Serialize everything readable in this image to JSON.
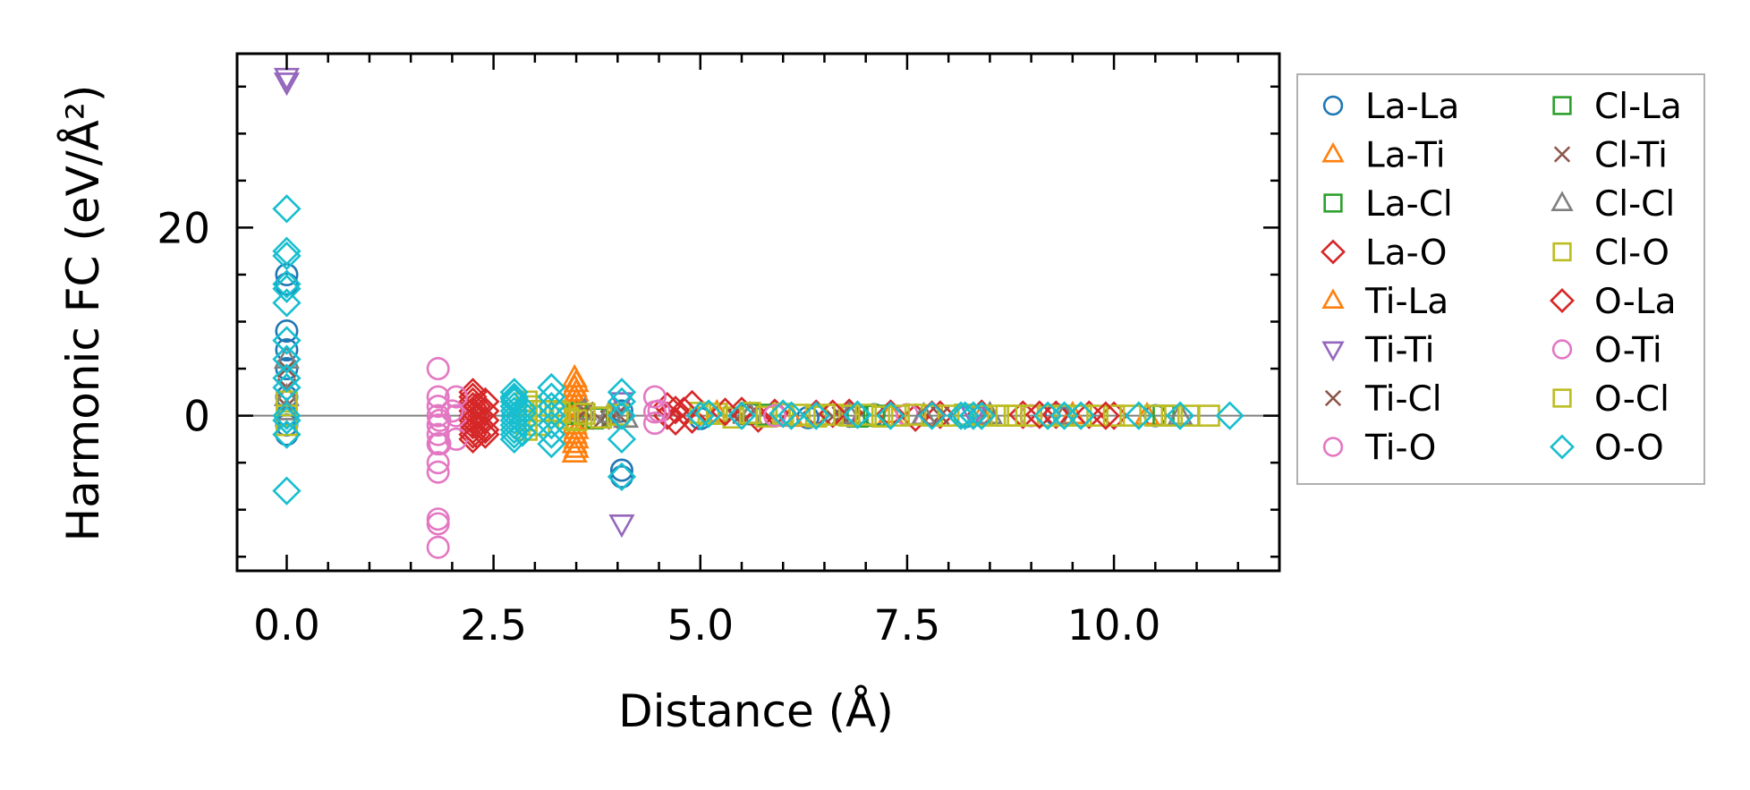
{
  "chart_data": {
    "type": "scatter",
    "title": "",
    "xlabel": "Distance (Å)",
    "ylabel": "Harmonic FC (eV/Å²)",
    "xlim": [
      -0.6,
      12.0
    ],
    "ylim": [
      -16.5,
      38.5
    ],
    "xticks": [
      0.0,
      2.5,
      5.0,
      7.5,
      10.0
    ],
    "xtick_labels": [
      "0.0",
      "2.5",
      "5.0",
      "7.5",
      "10.0"
    ],
    "yticks": [
      0,
      20
    ],
    "ytick_labels": [
      "0",
      "20"
    ],
    "reference_line_y": 0,
    "grid": false,
    "legend": {
      "position": "outside-right",
      "columns": 2
    },
    "series": [
      {
        "name": "La-La",
        "marker": "circle",
        "color": "#1f77b4",
        "x": [
          0,
          0,
          0,
          0,
          0,
          0,
          0,
          0,
          0,
          4.05,
          4.05,
          4.05,
          5.0,
          5.6,
          6.3,
          7.1,
          8.2,
          9.3,
          10.5
        ],
        "y": [
          15,
          14,
          9,
          7,
          5,
          0,
          -1,
          -2,
          2,
          -5.8,
          -6.5,
          0.5,
          -0.3,
          0.2,
          -0.2,
          0.1,
          -0.1,
          0.1,
          0
        ]
      },
      {
        "name": "La-Ti",
        "marker": "triangle-up",
        "color": "#ff7f0e",
        "x": [
          3.48,
          3.48,
          3.48,
          3.48,
          3.48,
          3.48,
          3.48,
          3.48,
          3.48,
          5.2,
          6.1,
          7.3,
          8.4,
          9.5,
          10.4
        ],
        "y": [
          4,
          3,
          2,
          1,
          0,
          -1,
          -2,
          -3,
          -4,
          0.3,
          -0.2,
          0.2,
          -0.1,
          0.1,
          0
        ]
      },
      {
        "name": "La-Cl",
        "marker": "square",
        "color": "#2ca02c",
        "x": [
          3.5,
          3.7,
          5.6,
          6.9,
          8.2,
          9.4,
          10.6
        ],
        "y": [
          0.3,
          -0.3,
          0.2,
          -0.1,
          0.1,
          0,
          0
        ]
      },
      {
        "name": "La-O",
        "marker": "diamond",
        "color": "#d62728",
        "x": [
          2.25,
          2.25,
          2.25,
          2.25,
          2.25,
          2.25,
          2.25,
          2.25,
          2.25,
          2.25,
          2.25,
          2.4,
          2.4,
          2.4,
          2.4,
          2.4,
          4.6,
          4.6,
          4.7,
          4.7,
          4.9,
          4.9,
          5.5,
          5.7,
          5.9,
          6.4,
          6.8,
          7.3,
          7.6,
          7.9,
          8.4,
          8.9,
          9.3,
          9.7,
          10.0
        ],
        "y": [
          2.5,
          2,
          1.5,
          1,
          0.5,
          0,
          -0.5,
          -1,
          -1.5,
          -2,
          -2.5,
          1.5,
          0.5,
          -0.5,
          -1.5,
          -2,
          1,
          0,
          0.6,
          -0.6,
          1.2,
          -0.4,
          0.5,
          -0.3,
          0.3,
          0.2,
          0.3,
          0.2,
          -0.2,
          0.1,
          0.2,
          0.1,
          0.1,
          0.1,
          0
        ]
      },
      {
        "name": "Ti-La",
        "marker": "triangle-up",
        "color": "#ff7f0e",
        "x": [
          3.5,
          3.5,
          3.5,
          3.5,
          3.5,
          3.5,
          3.5,
          3.5
        ],
        "y": [
          3.5,
          2.5,
          1.5,
          0.5,
          -0.5,
          -1.5,
          -2.5,
          -3.5
        ]
      },
      {
        "name": "Ti-Ti",
        "marker": "triangle-down",
        "color": "#9467bd",
        "x": [
          0,
          0,
          4.05,
          4.05,
          6.8,
          8.3
        ],
        "y": [
          36,
          35.5,
          -11.5,
          1.5,
          0.1,
          0
        ]
      },
      {
        "name": "Ti-Cl",
        "marker": "x",
        "color": "#8c564b",
        "x": [
          0,
          0,
          0,
          3.6,
          3.8,
          4.0,
          5.4,
          6.6,
          7.9
        ],
        "y": [
          5,
          3,
          1,
          0.5,
          -0.5,
          0.2,
          0.1,
          -0.1,
          0
        ]
      },
      {
        "name": "Ti-O",
        "marker": "circle",
        "color": "#e377c2",
        "x": [
          1.83,
          1.83,
          1.83,
          1.83,
          1.83,
          1.83,
          1.83,
          1.83,
          1.83,
          1.83,
          1.83,
          1.83,
          2.05,
          2.05,
          2.05,
          4.45,
          4.45,
          4.5,
          6.0,
          7.5,
          9.0
        ],
        "y": [
          5,
          2,
          0,
          -1,
          -2,
          -3,
          -5,
          -6,
          -11,
          -11.5,
          -14,
          1,
          2,
          0,
          -2.5,
          2,
          -0.8,
          0.5,
          0.1,
          0.1,
          0
        ]
      },
      {
        "name": "Cl-La",
        "marker": "square",
        "color": "#2ca02c",
        "x": [
          3.5,
          3.75,
          5.8,
          7.1
        ],
        "y": [
          0.2,
          -0.2,
          0.1,
          0
        ]
      },
      {
        "name": "Cl-Ti",
        "marker": "x",
        "color": "#8c564b",
        "x": [
          3.6,
          3.9,
          5.5,
          6.7
        ],
        "y": [
          0.4,
          -0.4,
          0.1,
          0
        ]
      },
      {
        "name": "Cl-Cl",
        "marker": "triangle-up",
        "color": "#7f7f7f",
        "x": [
          0,
          0,
          0,
          3.6,
          3.9,
          4.1,
          5.6,
          6.8,
          7.7,
          8.5,
          9.4,
          10.8
        ],
        "y": [
          6,
          2,
          0.5,
          0.5,
          0.2,
          -0.3,
          0.1,
          0.1,
          0,
          0.1,
          0,
          0
        ]
      },
      {
        "name": "Cl-O",
        "marker": "square",
        "color": "#bcbd22",
        "x": [
          0,
          0,
          0,
          2.9,
          2.9,
          2.9,
          2.9,
          2.9,
          3.1,
          3.3,
          3.4,
          3.6,
          3.8,
          4.0,
          5.0,
          5.2,
          5.4,
          5.6,
          5.8,
          6.0,
          6.2,
          6.4,
          6.6,
          6.8,
          7.0,
          7.2,
          7.4,
          7.6,
          7.8,
          8.0,
          8.2,
          8.4,
          8.6,
          8.8,
          9.0,
          9.2,
          9.4,
          9.6,
          9.8,
          10.0,
          10.2,
          10.5,
          10.9,
          11.15
        ],
        "y": [
          1.5,
          0,
          -1,
          1.5,
          0.5,
          0,
          -0.5,
          -1.5,
          0.5,
          0.3,
          -0.3,
          0.2,
          -0.2,
          0.1,
          0.3,
          0.2,
          -0.2,
          0.3,
          -0.1,
          0.2,
          0.1,
          -0.1,
          0.1,
          0,
          0.1,
          -0.1,
          0,
          0.1,
          0,
          0,
          0.1,
          0,
          0,
          0,
          0,
          0,
          0,
          0,
          0,
          0,
          0,
          0,
          0,
          0
        ]
      },
      {
        "name": "O-La",
        "marker": "diamond",
        "color": "#d62728",
        "x": [
          2.3,
          2.3,
          2.3,
          2.3,
          4.8,
          5.3,
          6.6,
          7.8,
          9.1,
          9.9
        ],
        "y": [
          1,
          0,
          -1,
          -2,
          0.5,
          0.4,
          0.2,
          0.1,
          0.1,
          0
        ]
      },
      {
        "name": "O-Ti",
        "marker": "circle",
        "color": "#e377c2",
        "x": [
          1.85,
          1.85,
          2.0,
          4.45,
          5.9
        ],
        "y": [
          -0.5,
          -3,
          0.5,
          0.4,
          0
        ]
      },
      {
        "name": "O-Cl",
        "marker": "square",
        "color": "#bcbd22",
        "x": [
          2.95,
          3.05,
          3.25,
          3.5,
          5.1,
          6.5,
          8.7,
          10.7
        ],
        "y": [
          1,
          -1,
          0.5,
          -0.5,
          0.2,
          0.1,
          0,
          0
        ]
      },
      {
        "name": "O-O",
        "marker": "diamond",
        "color": "#17becf",
        "x": [
          0,
          0,
          0,
          0,
          0,
          0,
          0,
          0,
          0,
          0,
          0,
          0,
          0,
          0,
          2.75,
          2.75,
          2.75,
          2.75,
          2.75,
          2.75,
          2.75,
          2.75,
          2.75,
          2.75,
          2.75,
          2.75,
          2.85,
          2.85,
          2.85,
          2.85,
          3.2,
          3.2,
          3.2,
          3.2,
          3.2,
          3.2,
          3.2,
          4.05,
          4.05,
          4.05,
          4.05,
          4.05,
          5.0,
          5.1,
          5.5,
          6.0,
          6.1,
          6.4,
          6.9,
          7.3,
          7.8,
          8.15,
          8.2,
          8.3,
          8.4,
          9.2,
          9.4,
          9.6,
          10.3,
          10.8,
          11.4
        ],
        "y": [
          22,
          17.5,
          17,
          14,
          13.5,
          12,
          8,
          6,
          4,
          3,
          0,
          -0.5,
          -2,
          -8,
          2.5,
          2,
          1.5,
          1,
          0.5,
          0,
          -0.5,
          -1,
          -1.5,
          -2,
          -2.5,
          1.8,
          0.8,
          -0.8,
          -1.8,
          0.3,
          3,
          2,
          1,
          0,
          -1,
          -2,
          -3,
          2.5,
          1.5,
          0,
          -2.5,
          -6.5,
          0,
          0.2,
          0,
          0.2,
          0,
          0,
          0.1,
          0,
          0,
          0,
          0,
          0,
          0,
          0,
          0,
          0,
          0,
          0,
          0
        ]
      }
    ]
  }
}
